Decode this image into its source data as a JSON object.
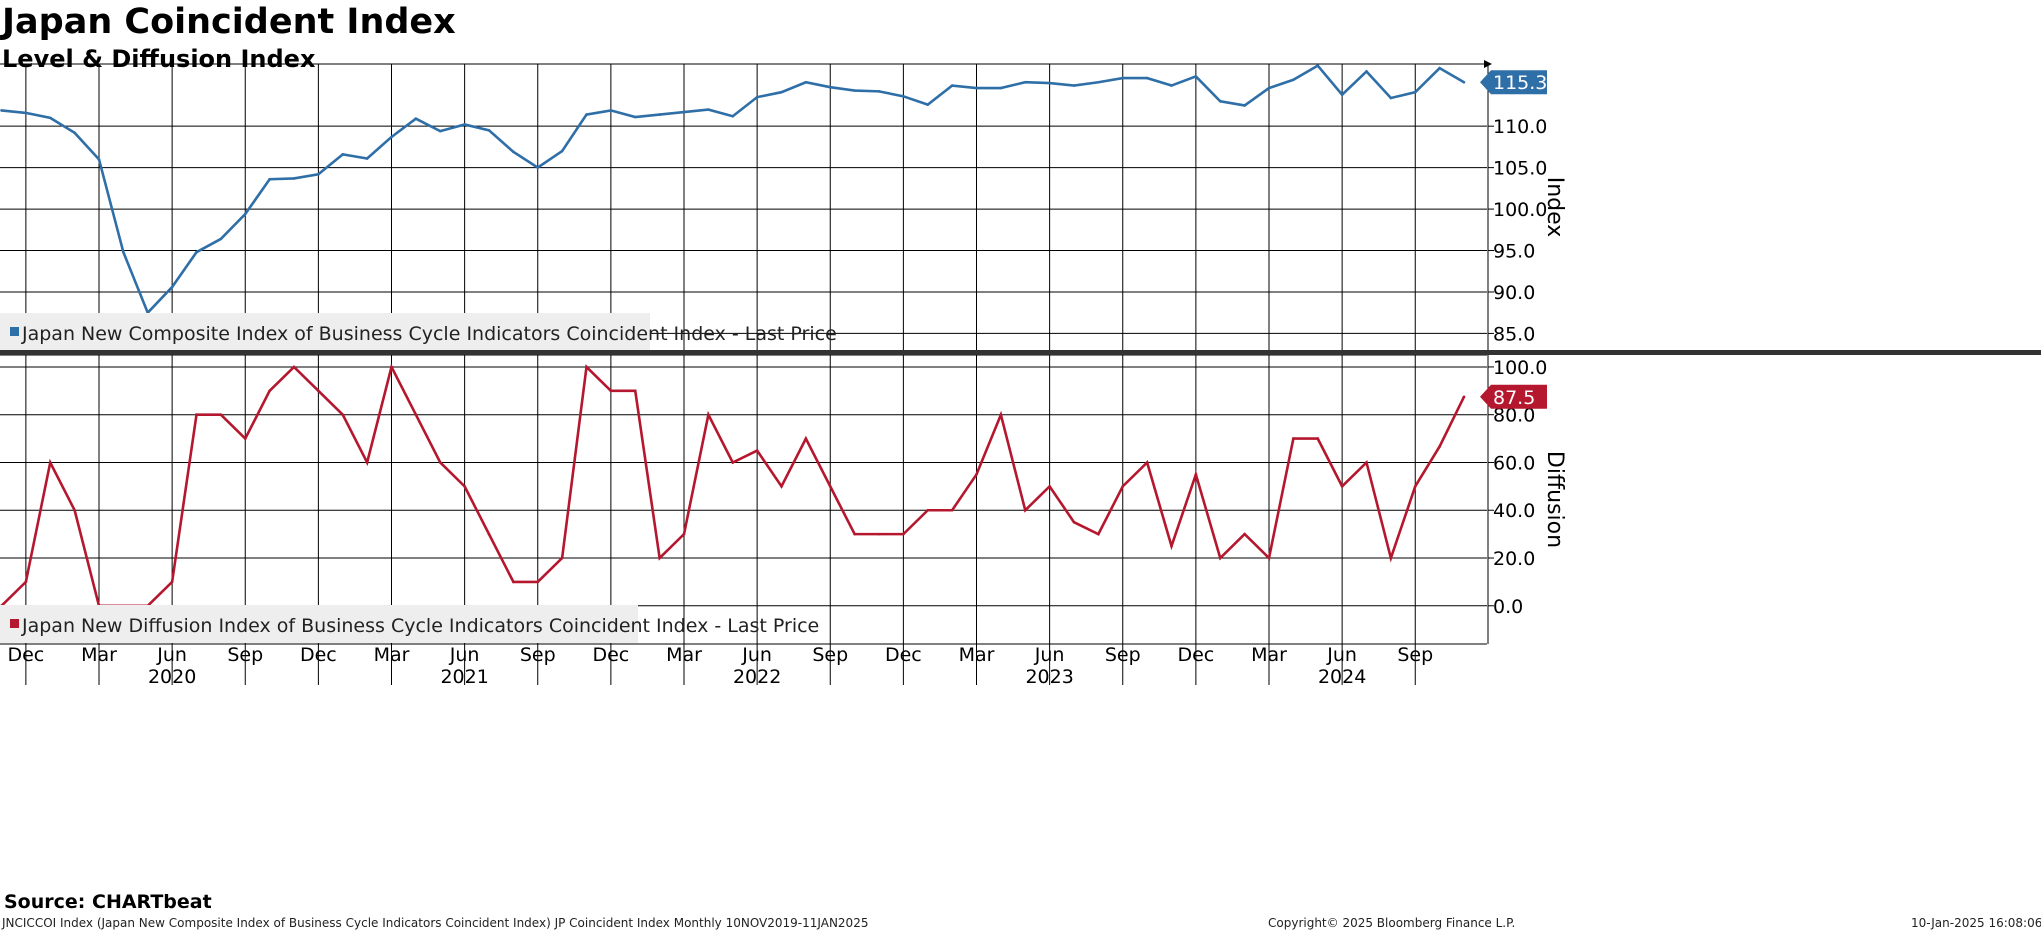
{
  "header": {
    "title": "Japan Coincident Index",
    "subtitle": "Level & Diffusion Index"
  },
  "footer": {
    "source": "Source: CHARTbeat",
    "description": "JNCICCOI Index (Japan New Composite Index of Business Cycle Indicators Coincident Index) JP Coincident Index  Monthly 10NOV2019-11JAN2025",
    "copyright": "Copyright© 2025 Bloomberg Finance L.P.",
    "timestamp": "10-Jan-2025 16:08:06"
  },
  "colors": {
    "level": "#2f6fa8",
    "diffusion": "#b5172e",
    "grid": "#000000",
    "legend_bg": "#eeeeee"
  },
  "chart_data": [
    {
      "type": "line",
      "ylabel": "Index",
      "ylim": [
        83,
        117.5
      ],
      "yticks": [
        85,
        90,
        95,
        100,
        105,
        110
      ],
      "ytick_labels": [
        "85.0",
        "90.0",
        "95.0",
        "100.0",
        "105.0",
        "110.0"
      ],
      "last_value_label": "115.3",
      "legend": "Japan New Composite Index of Business Cycle Indicators Coincident Index - Last Price",
      "grid": true,
      "series": [
        {
          "name": "Japan New Composite Index of Business Cycle Indicators Coincident Index - Last Price",
          "x": [
            "2019-11",
            "2019-12",
            "2020-01",
            "2020-02",
            "2020-03",
            "2020-04",
            "2020-05",
            "2020-06",
            "2020-07",
            "2020-08",
            "2020-09",
            "2020-10",
            "2020-11",
            "2020-12",
            "2021-01",
            "2021-02",
            "2021-03",
            "2021-04",
            "2021-05",
            "2021-06",
            "2021-07",
            "2021-08",
            "2021-09",
            "2021-10",
            "2021-11",
            "2021-12",
            "2022-01",
            "2022-02",
            "2022-03",
            "2022-04",
            "2022-05",
            "2022-06",
            "2022-07",
            "2022-08",
            "2022-09",
            "2022-10",
            "2022-11",
            "2022-12",
            "2023-01",
            "2023-02",
            "2023-03",
            "2023-04",
            "2023-05",
            "2023-06",
            "2023-07",
            "2023-08",
            "2023-09",
            "2023-10",
            "2023-11",
            "2023-12",
            "2024-01",
            "2024-02",
            "2024-03",
            "2024-04",
            "2024-05",
            "2024-06",
            "2024-07",
            "2024-08",
            "2024-09",
            "2024-10",
            "2024-11"
          ],
          "values": [
            111.9,
            111.6,
            111.0,
            109.2,
            106.0,
            94.8,
            87.5,
            90.6,
            94.8,
            96.4,
            99.4,
            103.6,
            103.7,
            104.2,
            106.6,
            106.1,
            108.7,
            110.9,
            109.4,
            110.2,
            109.5,
            106.9,
            105.0,
            107.0,
            111.4,
            111.9,
            111.1,
            111.4,
            111.7,
            112.0,
            111.2,
            113.5,
            114.1,
            115.3,
            114.7,
            114.3,
            114.2,
            113.6,
            112.6,
            114.9,
            114.6,
            114.6,
            115.3,
            115.2,
            114.9,
            115.3,
            115.8,
            115.8,
            114.9,
            116.0,
            113.0,
            112.5,
            114.6,
            115.6,
            117.3,
            113.8,
            116.6,
            113.4,
            114.1,
            117.0,
            115.3
          ]
        }
      ]
    },
    {
      "type": "line",
      "ylabel": "Diffusion",
      "ylim": [
        -16,
        105
      ],
      "yticks": [
        0,
        20,
        40,
        60,
        80,
        100
      ],
      "ytick_labels": [
        "0.0",
        "20.0",
        "40.0",
        "60.0",
        "80.0",
        "100.0"
      ],
      "last_value_label": "87.5",
      "legend": "Japan New Diffusion Index of Business Cycle Indicators Coincident Index - Last Price",
      "grid": true,
      "series": [
        {
          "name": "Japan New Diffusion Index of Business Cycle Indicators Coincident Index - Last Price",
          "x": [
            "2019-11",
            "2019-12",
            "2020-01",
            "2020-02",
            "2020-03",
            "2020-04",
            "2020-05",
            "2020-06",
            "2020-07",
            "2020-08",
            "2020-09",
            "2020-10",
            "2020-11",
            "2020-12",
            "2021-01",
            "2021-02",
            "2021-03",
            "2021-04",
            "2021-05",
            "2021-06",
            "2021-07",
            "2021-08",
            "2021-09",
            "2021-10",
            "2021-11",
            "2021-12",
            "2022-01",
            "2022-02",
            "2022-03",
            "2022-04",
            "2022-05",
            "2022-06",
            "2022-07",
            "2022-08",
            "2022-09",
            "2022-10",
            "2022-11",
            "2022-12",
            "2023-01",
            "2023-02",
            "2023-03",
            "2023-04",
            "2023-05",
            "2023-06",
            "2023-07",
            "2023-08",
            "2023-09",
            "2023-10",
            "2023-11",
            "2023-12",
            "2024-01",
            "2024-02",
            "2024-03",
            "2024-04",
            "2024-05",
            "2024-06",
            "2024-07",
            "2024-08",
            "2024-09",
            "2024-10",
            "2024-11"
          ],
          "values": [
            0,
            10,
            60,
            40,
            0,
            0,
            0,
            10,
            80,
            80,
            70,
            90,
            100,
            90,
            80,
            60,
            100,
            80,
            60,
            50,
            30,
            10,
            10,
            20,
            100,
            90,
            90,
            20,
            30,
            80,
            60,
            65,
            50,
            70,
            50,
            30,
            30,
            30,
            40,
            40,
            55,
            80,
            40,
            50,
            35,
            30,
            50,
            60,
            25,
            55,
            20,
            30,
            20,
            70,
            70,
            50,
            60,
            20,
            50,
            66.7,
            87.5
          ]
        }
      ]
    }
  ],
  "xaxis": {
    "month_labels": [
      "Dec",
      "Mar",
      "Jun",
      "Sep",
      "Dec",
      "Mar",
      "Jun",
      "Sep",
      "Dec",
      "Mar",
      "Jun",
      "Sep",
      "Dec",
      "Mar",
      "Jun",
      "Sep",
      "Dec",
      "Mar",
      "Jun",
      "Sep"
    ],
    "year_labels": [
      "2020",
      "2021",
      "2022",
      "2023",
      "2024"
    ]
  }
}
